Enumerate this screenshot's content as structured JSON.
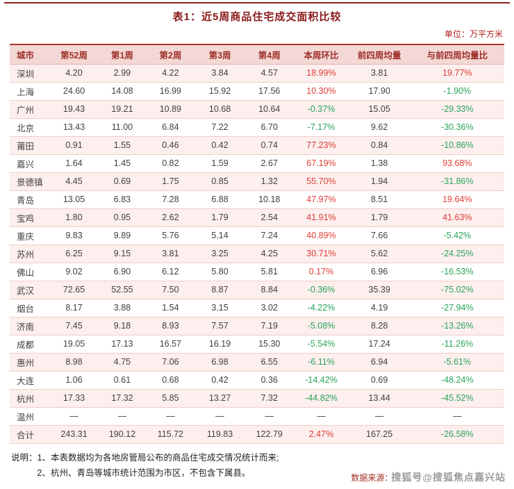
{
  "page": {
    "title": "表1：近5周商品住宅成交面积比较",
    "unit_label": "单位：万平方米"
  },
  "table": {
    "headers": [
      "城市",
      "第52周",
      "第1周",
      "第2周",
      "第3周",
      "第4周",
      "本周环比",
      "前四周均量",
      "与前四周均量比"
    ],
    "total_label": "合计",
    "rows": [
      [
        "深圳",
        "4.20",
        "2.99",
        "4.22",
        "3.84",
        "4.57",
        "18.99%",
        "3.81",
        "19.77%"
      ],
      [
        "上海",
        "24.60",
        "14.08",
        "16.99",
        "15.92",
        "17.56",
        "10.30%",
        "17.90",
        "-1.90%"
      ],
      [
        "广州",
        "19.43",
        "19.21",
        "10.89",
        "10.68",
        "10.64",
        "-0.37%",
        "15.05",
        "-29.33%"
      ],
      [
        "北京",
        "13.43",
        "11.00",
        "6.84",
        "7.22",
        "6.70",
        "-7.17%",
        "9.62",
        "-30.36%"
      ],
      [
        "莆田",
        "0.91",
        "1.55",
        "0.46",
        "0.42",
        "0.74",
        "77.23%",
        "0.84",
        "-10.86%"
      ],
      [
        "嘉兴",
        "1.64",
        "1.45",
        "0.82",
        "1.59",
        "2.67",
        "67.19%",
        "1.38",
        "93.68%"
      ],
      [
        "景德镇",
        "4.45",
        "0.69",
        "1.75",
        "0.85",
        "1.32",
        "55.70%",
        "1.94",
        "-31.86%"
      ],
      [
        "青岛",
        "13.05",
        "6.83",
        "7.28",
        "6.88",
        "10.18",
        "47.97%",
        "8.51",
        "19.64%"
      ],
      [
        "宝鸡",
        "1.80",
        "0.95",
        "2.62",
        "1.79",
        "2.54",
        "41.91%",
        "1.79",
        "41.63%"
      ],
      [
        "重庆",
        "9.83",
        "9.89",
        "5.76",
        "5.14",
        "7.24",
        "40.89%",
        "7.66",
        "-5.42%"
      ],
      [
        "苏州",
        "6.25",
        "9.15",
        "3.81",
        "3.25",
        "4.25",
        "30.71%",
        "5.62",
        "-24.25%"
      ],
      [
        "佛山",
        "9.02",
        "6.90",
        "6.12",
        "5.80",
        "5.81",
        "0.17%",
        "6.96",
        "-16.53%"
      ],
      [
        "武汉",
        "72.65",
        "52.55",
        "7.50",
        "8.87",
        "8.84",
        "-0.36%",
        "35.39",
        "-75.02%"
      ],
      [
        "烟台",
        "8.17",
        "3.88",
        "1.54",
        "3.15",
        "3.02",
        "-4.22%",
        "4.19",
        "-27.94%"
      ],
      [
        "济南",
        "7.45",
        "9.18",
        "8.93",
        "7.57",
        "7.19",
        "-5.08%",
        "8.28",
        "-13.26%"
      ],
      [
        "成都",
        "19.05",
        "17.13",
        "16.57",
        "16.19",
        "15.30",
        "-5.54%",
        "17.24",
        "-11.26%"
      ],
      [
        "惠州",
        "8.98",
        "4.75",
        "7.06",
        "6.98",
        "6.55",
        "-6.11%",
        "6.94",
        "-5.61%"
      ],
      [
        "大连",
        "1.06",
        "0.61",
        "0.68",
        "0.42",
        "0.36",
        "-14.42%",
        "0.69",
        "-48.24%"
      ],
      [
        "杭州",
        "17.33",
        "17.32",
        "5.85",
        "13.27",
        "7.32",
        "-44.82%",
        "13.44",
        "-45.52%"
      ],
      [
        "温州",
        "—",
        "—",
        "—",
        "—",
        "—",
        "—",
        "—",
        "—"
      ],
      [
        "合计",
        "243.31",
        "190.12",
        "115.72",
        "119.83",
        "122.79",
        "2.47%",
        "167.25",
        "-26.58%"
      ]
    ]
  },
  "notes": {
    "label": "说明：",
    "lines": [
      "1、本表数据均为各地房管局公布的商品住宅成交情况统计而来;",
      "2、杭州、青岛等城市统计范围为市区，不包含下属县。"
    ]
  },
  "source": {
    "label": "数据来源：",
    "watermark": "搜狐号@搜狐焦点嘉兴站"
  },
  "colors": {
    "accent_dark_red": "#8e1d1d",
    "header_bg": "#f4d8d5",
    "row_alt_bg": "#fcefee",
    "positive_red": "#e03c36",
    "negative_green": "#2aa35a"
  }
}
